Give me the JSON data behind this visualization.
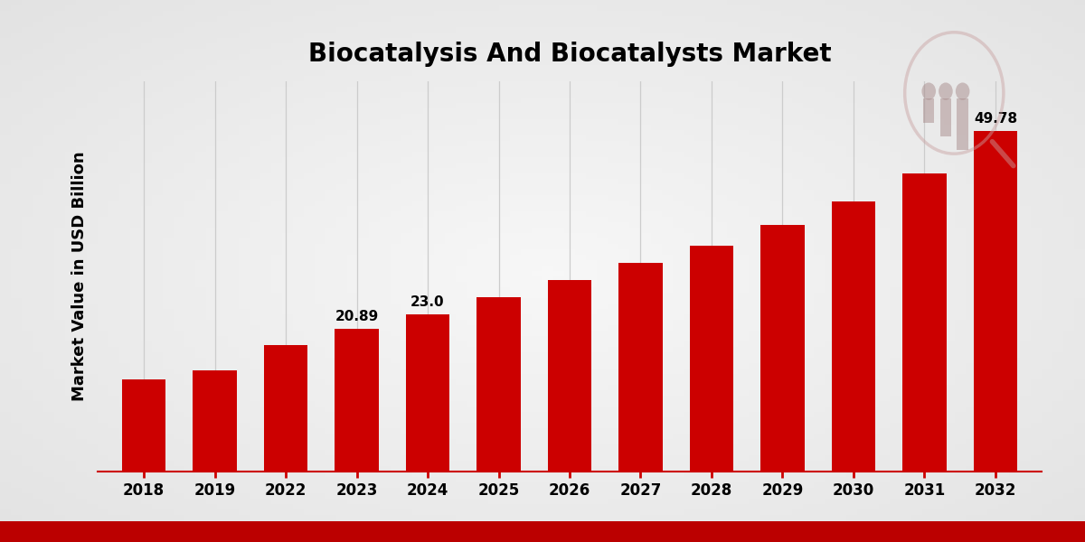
{
  "title": "Biocatalysis And Biocatalysts Market",
  "ylabel": "Market Value in USD Billion",
  "bar_color": "#CC0000",
  "background_color": "#f0f0f0",
  "categories": [
    "2018",
    "2019",
    "2022",
    "2023",
    "2024",
    "2025",
    "2026",
    "2027",
    "2028",
    "2029",
    "2030",
    "2031",
    "2032"
  ],
  "values": [
    13.5,
    14.8,
    18.5,
    20.89,
    23.0,
    25.5,
    28.0,
    30.5,
    33.0,
    36.0,
    39.5,
    43.5,
    49.78
  ],
  "annotations": {
    "2023": "20.89",
    "2024": "23.0",
    "2032": "49.78"
  },
  "ylim": [
    0,
    57
  ],
  "title_fontsize": 20,
  "label_fontsize": 13,
  "tick_fontsize": 12,
  "annot_fontsize": 11,
  "grid_color": "#cccccc",
  "bottom_bar_color": "#bb0000",
  "logo_color": "#c8a0a0",
  "logo_color2": "#a08080"
}
